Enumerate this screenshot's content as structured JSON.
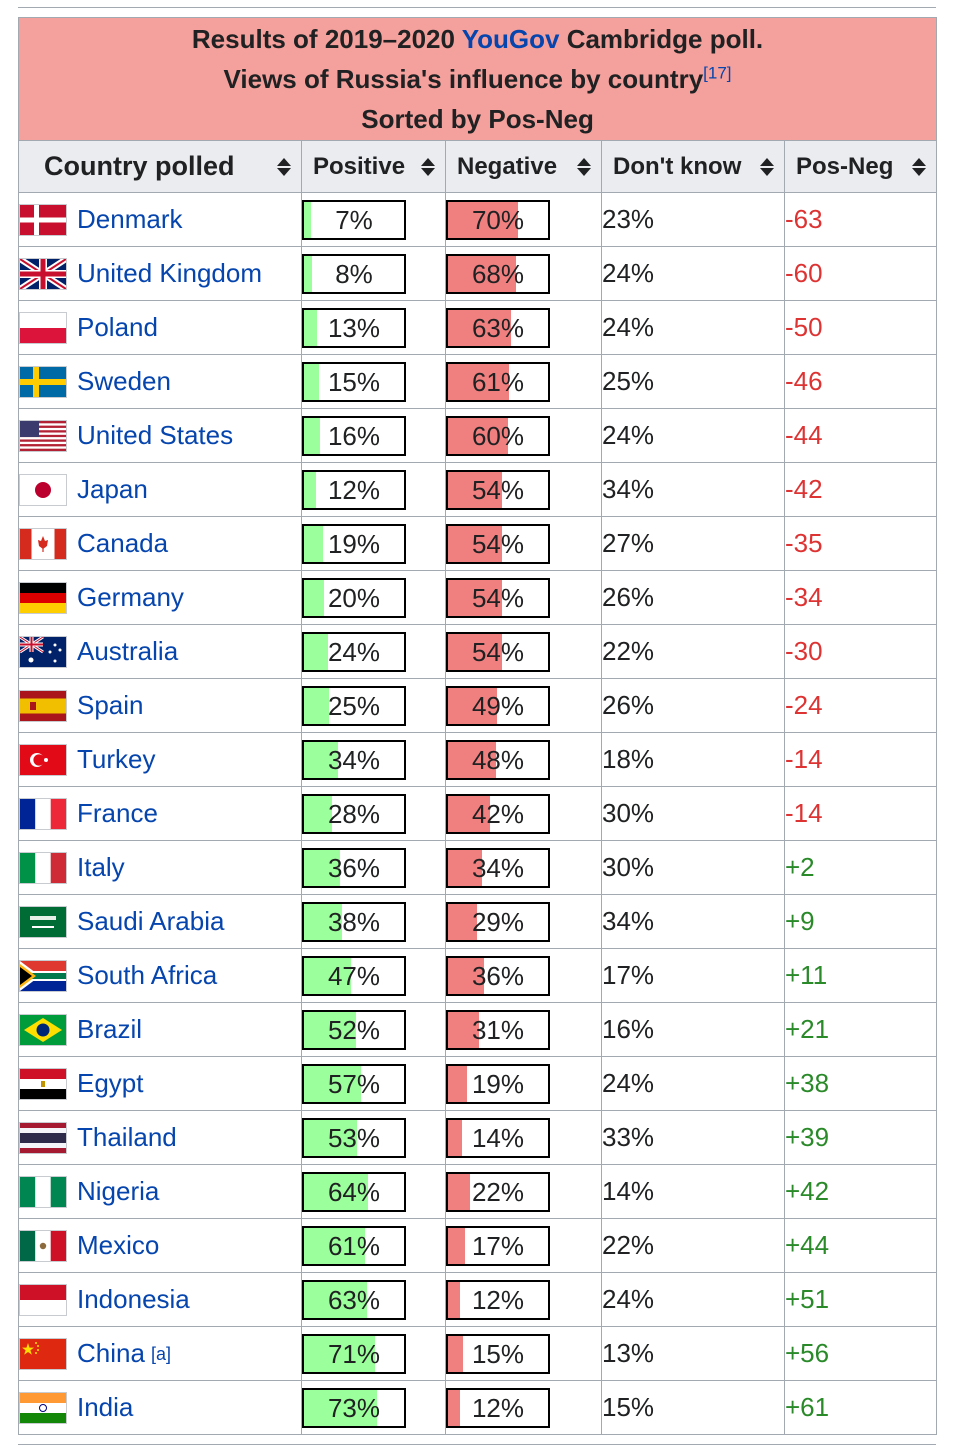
{
  "caption": {
    "line1_before": "Results of 2019–2020 ",
    "line1_link": "YouGov",
    "line1_after": " Cambridge poll.",
    "line2": "Views of Russia's influence by country",
    "line2_ref": "[17]",
    "line3": "Sorted by Pos-Neg"
  },
  "headers": {
    "country": "Country polled",
    "positive": "Positive",
    "negative": "Negative",
    "dont_know": "Don't know",
    "pos_neg": "Pos-Neg"
  },
  "colors": {
    "caption_bg": "#f4a09c",
    "positive_bar": "#9bff9b",
    "negative_bar": "#f08080",
    "link": "#0645ad",
    "negative_text": "#dd3333",
    "positive_text": "#2a8a2a"
  },
  "rows": [
    {
      "country": "Denmark",
      "flag": "denmark-flag",
      "positive": "7%",
      "negative": "70%",
      "dont_know": "23%",
      "pos_neg": "-63"
    },
    {
      "country": "United Kingdom",
      "flag": "united-kingdom-flag",
      "positive": "8%",
      "negative": "68%",
      "dont_know": "24%",
      "pos_neg": "-60"
    },
    {
      "country": "Poland",
      "flag": "poland-flag",
      "positive": "13%",
      "negative": "63%",
      "dont_know": "24%",
      "pos_neg": "-50"
    },
    {
      "country": "Sweden",
      "flag": "sweden-flag",
      "positive": "15%",
      "negative": "61%",
      "dont_know": "25%",
      "pos_neg": "-46"
    },
    {
      "country": "United States",
      "flag": "united-states-flag",
      "positive": "16%",
      "negative": "60%",
      "dont_know": "24%",
      "pos_neg": "-44"
    },
    {
      "country": "Japan",
      "flag": "japan-flag",
      "positive": "12%",
      "negative": "54%",
      "dont_know": "34%",
      "pos_neg": "-42"
    },
    {
      "country": "Canada",
      "flag": "canada-flag",
      "positive": "19%",
      "negative": "54%",
      "dont_know": "27%",
      "pos_neg": "-35"
    },
    {
      "country": "Germany",
      "flag": "germany-flag",
      "positive": "20%",
      "negative": "54%",
      "dont_know": "26%",
      "pos_neg": "-34"
    },
    {
      "country": "Australia",
      "flag": "australia-flag",
      "positive": "24%",
      "negative": "54%",
      "dont_know": "22%",
      "pos_neg": "-30"
    },
    {
      "country": "Spain",
      "flag": "spain-flag",
      "positive": "25%",
      "negative": "49%",
      "dont_know": "26%",
      "pos_neg": "-24"
    },
    {
      "country": "Turkey",
      "flag": "turkey-flag",
      "positive": "34%",
      "negative": "48%",
      "dont_know": "18%",
      "pos_neg": "-14"
    },
    {
      "country": "France",
      "flag": "france-flag",
      "positive": "28%",
      "negative": "42%",
      "dont_know": "30%",
      "pos_neg": "-14"
    },
    {
      "country": "Italy",
      "flag": "italy-flag",
      "positive": "36%",
      "negative": "34%",
      "dont_know": "30%",
      "pos_neg": "+2"
    },
    {
      "country": "Saudi Arabia",
      "flag": "saudi-arabia-flag",
      "positive": "38%",
      "negative": "29%",
      "dont_know": "34%",
      "pos_neg": "+9"
    },
    {
      "country": "South Africa",
      "flag": "south-africa-flag",
      "positive": "47%",
      "negative": "36%",
      "dont_know": "17%",
      "pos_neg": "+11"
    },
    {
      "country": "Brazil",
      "flag": "brazil-flag",
      "positive": "52%",
      "negative": "31%",
      "dont_know": "16%",
      "pos_neg": "+21"
    },
    {
      "country": "Egypt",
      "flag": "egypt-flag",
      "positive": "57%",
      "negative": "19%",
      "dont_know": "24%",
      "pos_neg": "+38"
    },
    {
      "country": "Thailand",
      "flag": "thailand-flag",
      "positive": "53%",
      "negative": "14%",
      "dont_know": "33%",
      "pos_neg": "+39"
    },
    {
      "country": "Nigeria",
      "flag": "nigeria-flag",
      "positive": "64%",
      "negative": "22%",
      "dont_know": "14%",
      "pos_neg": "+42"
    },
    {
      "country": "Mexico",
      "flag": "mexico-flag",
      "positive": "61%",
      "negative": "17%",
      "dont_know": "22%",
      "pos_neg": "+44"
    },
    {
      "country": "Indonesia",
      "flag": "indonesia-flag",
      "positive": "63%",
      "negative": "12%",
      "dont_know": "24%",
      "pos_neg": "+51"
    },
    {
      "country": "China",
      "note": "[a]",
      "flag": "china-flag",
      "positive": "71%",
      "negative": "15%",
      "dont_know": "13%",
      "pos_neg": "+56"
    },
    {
      "country": "India",
      "flag": "india-flag",
      "positive": "73%",
      "negative": "12%",
      "dont_know": "15%",
      "pos_neg": "+61"
    }
  ]
}
